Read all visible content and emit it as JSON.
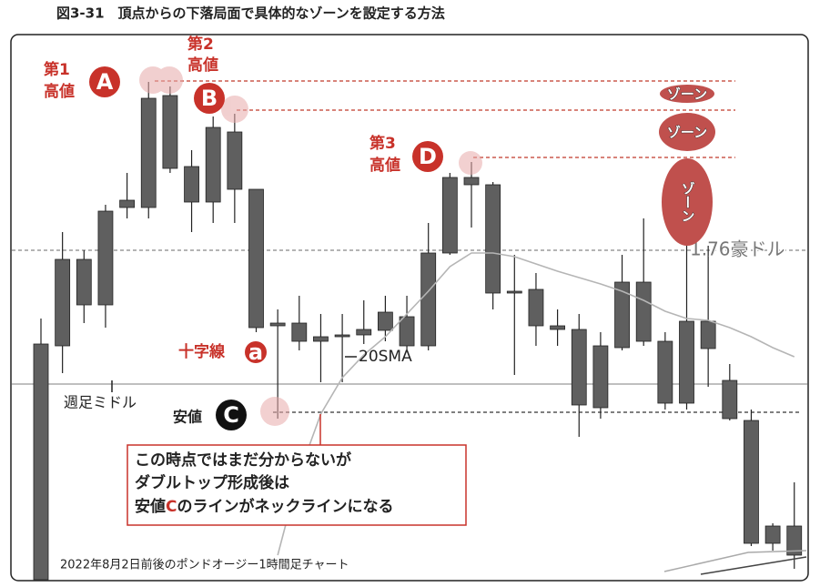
{
  "chart_data": {
    "type": "candlestick",
    "title": "図3-31　頂点からの下落局面で具体的なゾーンを設定する方法",
    "footnote": "2022年8月2日前後のポンドオージー1時間足チャート",
    "color": "#5f5f5f",
    "ylim": [
      0,
      645
    ],
    "open": [
      267,
      360,
      360,
      413,
      425,
      537,
      540,
      462,
      505,
      500,
      437,
      290,
      290,
      275,
      277,
      283,
      302,
      297,
      367,
      450,
      450,
      442,
      325,
      327,
      287,
      283,
      265,
      335,
      335,
      270,
      292,
      292,
      227,
      183,
      67,
      67
    ],
    "close": [
      8,
      265,
      310,
      310,
      417,
      417,
      460,
      423,
      423,
      437,
      285,
      287,
      270,
      270,
      275,
      277,
      282,
      265,
      265,
      367,
      442,
      323,
      323,
      287,
      283,
      200,
      197,
      263,
      270,
      202,
      202,
      262,
      185,
      48,
      48,
      35
    ],
    "high": [
      295,
      390,
      370,
      420,
      455,
      555,
      550,
      480,
      517,
      520,
      437,
      305,
      320,
      300,
      300,
      315,
      320,
      320,
      400,
      455,
      467,
      445,
      365,
      345,
      305,
      300,
      280,
      365,
      405,
      280,
      385,
      375,
      245,
      195,
      70,
      115
    ],
    "low": [
      8,
      235,
      290,
      285,
      405,
      405,
      455,
      390,
      400,
      400,
      280,
      185,
      260,
      225,
      225,
      267,
      270,
      260,
      260,
      365,
      395,
      305,
      233,
      265,
      265,
      165,
      185,
      260,
      265,
      195,
      195,
      220,
      183,
      45,
      40,
      20
    ],
    "sma": {
      "name": "20SMA",
      "color": "#b5b5b5",
      "values": [
        null,
        null,
        null,
        null,
        null,
        null,
        null,
        null,
        null,
        null,
        null,
        35,
        125,
        190,
        230,
        255,
        275,
        300,
        325,
        352,
        367,
        367,
        363,
        355,
        347,
        340,
        333,
        325,
        315,
        303,
        295,
        293,
        285,
        275,
        263,
        253
      ]
    },
    "reference_lines": [
      {
        "value": 556,
        "color": "#c0392b",
        "style": "dashed"
      },
      {
        "value": 524,
        "color": "#c0392b",
        "style": "dashed"
      },
      {
        "value": 472,
        "color": "#c0392b",
        "style": "dashed"
      },
      {
        "value": 370,
        "color": "#888888",
        "style": "dashed",
        "label": "1.76豪ドル"
      },
      {
        "value": 223,
        "color": "#999999",
        "style": "solid",
        "label": "週足ミドル"
      },
      {
        "value": 192,
        "color": "#333333",
        "style": "dashed"
      }
    ],
    "annotations": {
      "first_high": [
        "第1",
        "高値"
      ],
      "A": "A",
      "second_high": [
        "第2",
        "高値"
      ],
      "B": "B",
      "third_high": [
        "第3",
        "高値"
      ],
      "D": "D",
      "doji": "十字線",
      "a": "a",
      "low": "安値",
      "C": "C",
      "zones": [
        "ゾーン",
        "ゾーン",
        "ゾーン"
      ],
      "box": [
        "この時点ではまだ分からないが",
        "ダブルトップ形成後は",
        "安値",
        "C",
        "のラインがネックラインになる"
      ]
    }
  }
}
